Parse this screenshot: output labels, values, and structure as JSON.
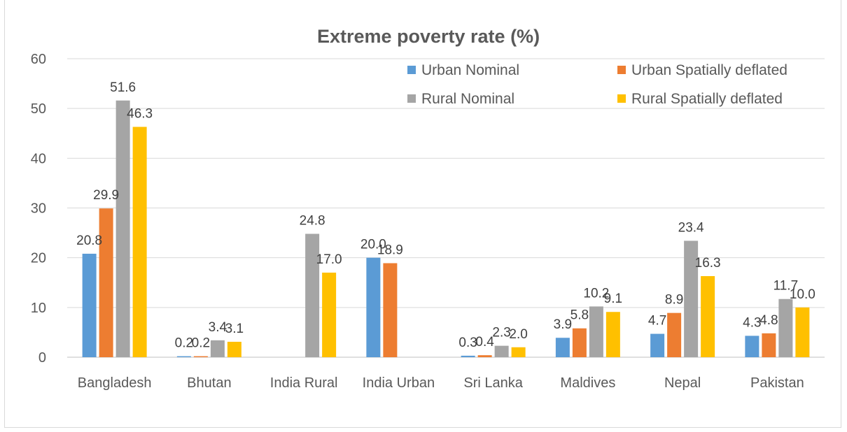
{
  "chart_data": {
    "type": "bar",
    "title": "Extreme poverty rate (%)",
    "xlabel": "",
    "ylabel": "",
    "ylim": [
      0,
      60
    ],
    "yticks": [
      0,
      10,
      20,
      30,
      40,
      50,
      60
    ],
    "grid": true,
    "legend_position": "top-right",
    "categories": [
      "Bangladesh",
      "Bhutan",
      "India Rural",
      "India Urban",
      "Sri Lanka",
      "Maldives",
      "Nepal",
      "Pakistan"
    ],
    "series": [
      {
        "name": "Urban Nominal",
        "color": "#5b9bd5",
        "values": [
          20.8,
          0.2,
          null,
          20.0,
          0.3,
          3.9,
          4.7,
          4.3
        ],
        "labels": [
          "20.8",
          "0.2",
          "",
          "20.0",
          "0.3",
          "3.9",
          "4.7",
          "4.3"
        ]
      },
      {
        "name": "Urban Spatially deflated",
        "color": "#ed7d31",
        "values": [
          29.9,
          0.2,
          null,
          18.9,
          0.4,
          5.8,
          8.9,
          4.8
        ],
        "labels": [
          "29.9",
          "0.2",
          "",
          "18.9",
          "0.4",
          "5.8",
          "8.9",
          "4.8"
        ]
      },
      {
        "name": "Rural Nominal",
        "color": "#a5a5a5",
        "values": [
          51.6,
          3.4,
          24.8,
          null,
          2.3,
          10.2,
          23.4,
          11.7
        ],
        "labels": [
          "51.6",
          "3.4",
          "24.8",
          "",
          "2.3",
          "10.2",
          "23.4",
          "11.7"
        ]
      },
      {
        "name": "Rural Spatially deflated",
        "color": "#ffc000",
        "values": [
          46.3,
          3.1,
          17.0,
          null,
          2.0,
          9.1,
          16.3,
          10.0
        ],
        "labels": [
          "46.3",
          "3.1",
          "17.0",
          "",
          "2.0",
          "9.1",
          "16.3",
          "10.0"
        ]
      }
    ]
  }
}
